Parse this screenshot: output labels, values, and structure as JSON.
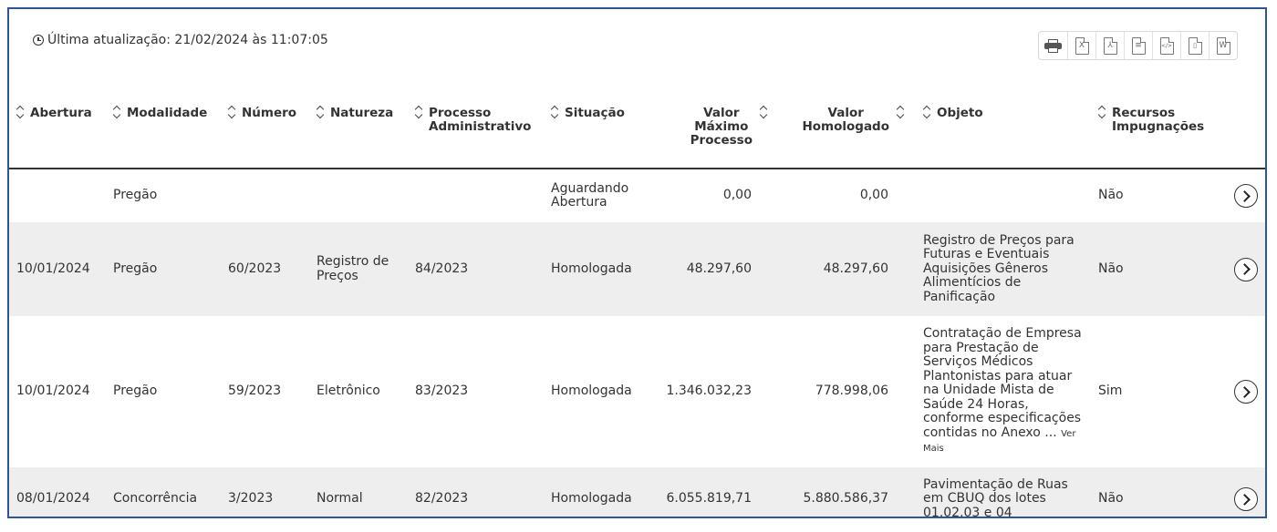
{
  "header": {
    "last_update": "Última atualização: 21/02/2024 às 11:07:05"
  },
  "toolbar": {
    "tools": [
      {
        "name": "print-icon",
        "glyph": ""
      },
      {
        "name": "excel-export-icon",
        "glyph": "X"
      },
      {
        "name": "pdf-export-icon",
        "glyph": "⅄"
      },
      {
        "name": "text-export-icon",
        "glyph": "≡"
      },
      {
        "name": "xml-export-icon",
        "glyph": "</>"
      },
      {
        "name": "zip-export-icon",
        "glyph": "▯"
      },
      {
        "name": "word-export-icon",
        "glyph": "W"
      }
    ]
  },
  "table": {
    "columns": {
      "abertura": "Abertura",
      "modalidade": "Modalidade",
      "numero": "Número",
      "natureza": "Natureza",
      "processo_1": "Processo",
      "processo_2": "Administrativo",
      "situacao": "Situação",
      "valor_max_1": "Valor",
      "valor_max_2": "Máximo",
      "valor_max_3": "Processo",
      "valor_hom_1": "Valor",
      "valor_hom_2": "Homologado",
      "objeto": "Objeto",
      "recursos_1": "Recursos",
      "recursos_2": "Impugnações"
    },
    "rows": [
      {
        "abertura": "",
        "modalidade": "Pregão",
        "numero": "",
        "natureza": "",
        "processo": "",
        "situacao": "Aguardando Abertura",
        "valor_maximo": "0,00",
        "valor_homologado": "0,00",
        "objeto": "",
        "ver_mais": "",
        "recursos": "Não"
      },
      {
        "abertura": "10/01/2024",
        "modalidade": "Pregão",
        "numero": "60/2023",
        "natureza": "Registro de Preços",
        "processo": "84/2023",
        "situacao": "Homologada",
        "valor_maximo": "48.297,60",
        "valor_homologado": "48.297,60",
        "objeto": "Registro de Preços para Futuras e Eventuais Aquisições Gêneros Alimentícios de Panificação",
        "ver_mais": "",
        "recursos": "Não"
      },
      {
        "abertura": "10/01/2024",
        "modalidade": "Pregão",
        "numero": "59/2023",
        "natureza": "Eletrônico",
        "processo": "83/2023",
        "situacao": "Homologada",
        "valor_maximo": "1.346.032,23",
        "valor_homologado": "778.998,06",
        "objeto": "Contratação de Empresa para Prestação de Serviços Médicos Plantonistas para atuar na Unidade Mista de Saúde 24 Horas, conforme especificações contidas no Anexo ...",
        "ver_mais": "Ver Mais",
        "recursos": "Sim"
      },
      {
        "abertura": "08/01/2024",
        "modalidade": "Concorrência",
        "numero": "3/2023",
        "natureza": "Normal",
        "processo": "82/2023",
        "situacao": "Homologada",
        "valor_maximo": "6.055.819,71",
        "valor_homologado": "5.880.586,37",
        "objeto": "Pavimentação de Ruas em CBUQ dos lotes 01.02.03 e 04",
        "ver_mais": "",
        "recursos": "Não"
      }
    ]
  }
}
